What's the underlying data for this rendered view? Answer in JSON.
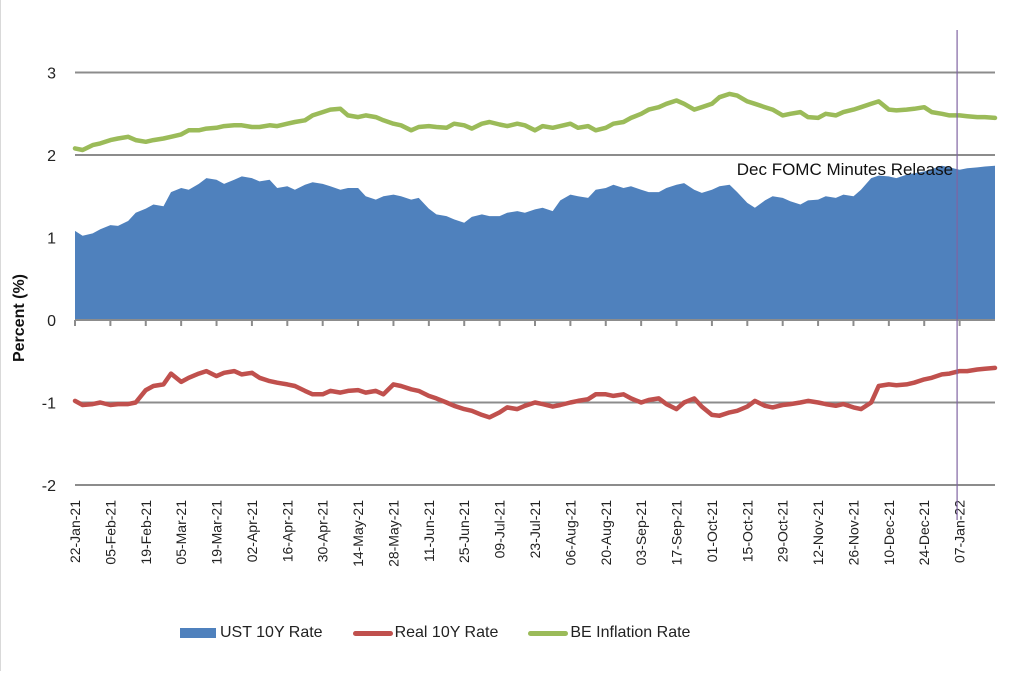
{
  "chart_data": {
    "type": "area+line",
    "title": "",
    "ylabel": "Percent (%)",
    "xlabel": "",
    "ylim": [
      -2,
      3.5
    ],
    "yticks": [
      -2,
      -1,
      0,
      1,
      2,
      3
    ],
    "ytick_labels": [
      "-2",
      "-1",
      "0",
      "1",
      "2",
      "3"
    ],
    "grid": "horizontal",
    "x_start": "22-Jan-21",
    "x_days_span": 364,
    "xtick_interval_days": 14,
    "xtick_labels": [
      "22-Jan-21",
      "05-Feb-21",
      "19-Feb-21",
      "05-Mar-21",
      "19-Mar-21",
      "02-Apr-21",
      "16-Apr-21",
      "30-Apr-21",
      "14-May-21",
      "28-May-21",
      "11-Jun-21",
      "25-Jun-21",
      "09-Jul-21",
      "23-Jul-21",
      "06-Aug-21",
      "20-Aug-21",
      "03-Sep-21",
      "17-Sep-21",
      "01-Oct-21",
      "15-Oct-21",
      "29-Oct-21",
      "12-Nov-21",
      "26-Nov-21",
      "10-Dec-21",
      "24-Dec-21",
      "07-Jan-22"
    ],
    "x_days": [
      0,
      3,
      7,
      10,
      14,
      17,
      21,
      24,
      28,
      31,
      35,
      38,
      42,
      45,
      49,
      52,
      56,
      59,
      63,
      66,
      70,
      73,
      77,
      80,
      84,
      87,
      91,
      94,
      98,
      101,
      105,
      108,
      112,
      115,
      119,
      122,
      126,
      129,
      133,
      136,
      140,
      143,
      147,
      150,
      154,
      157,
      161,
      164,
      168,
      171,
      175,
      178,
      182,
      185,
      189,
      192,
      196,
      199,
      203,
      206,
      210,
      213,
      217,
      220,
      224,
      227,
      231,
      234,
      238,
      241,
      245,
      248,
      252,
      255,
      259,
      262,
      266,
      269,
      273,
      276,
      280,
      283,
      287,
      290,
      294,
      297,
      301,
      304,
      308,
      311,
      315,
      318,
      322,
      325,
      329,
      332,
      336,
      339,
      343,
      346,
      350,
      353,
      357,
      360,
      364
    ],
    "series": [
      {
        "name": "UST 10Y Rate",
        "kind": "area",
        "color": "#4f81bd",
        "values": [
          1.08,
          1.02,
          1.05,
          1.1,
          1.15,
          1.14,
          1.2,
          1.3,
          1.35,
          1.4,
          1.38,
          1.55,
          1.6,
          1.58,
          1.65,
          1.72,
          1.7,
          1.65,
          1.7,
          1.74,
          1.72,
          1.68,
          1.7,
          1.6,
          1.62,
          1.58,
          1.64,
          1.67,
          1.65,
          1.62,
          1.58,
          1.6,
          1.6,
          1.5,
          1.46,
          1.5,
          1.52,
          1.5,
          1.46,
          1.48,
          1.35,
          1.28,
          1.26,
          1.22,
          1.18,
          1.25,
          1.28,
          1.26,
          1.26,
          1.3,
          1.32,
          1.3,
          1.34,
          1.36,
          1.32,
          1.45,
          1.52,
          1.5,
          1.48,
          1.58,
          1.6,
          1.64,
          1.6,
          1.62,
          1.58,
          1.55,
          1.55,
          1.6,
          1.64,
          1.66,
          1.58,
          1.54,
          1.58,
          1.62,
          1.64,
          1.55,
          1.42,
          1.36,
          1.45,
          1.5,
          1.48,
          1.44,
          1.4,
          1.45,
          1.46,
          1.5,
          1.48,
          1.52,
          1.5,
          1.58,
          1.72,
          1.75,
          1.74,
          1.72,
          1.76,
          1.78,
          1.8,
          1.83,
          1.87,
          1.85,
          1.82,
          1.84,
          1.85,
          1.86,
          1.87
        ]
      },
      {
        "name": "Real 10Y Rate",
        "kind": "line",
        "color": "#c0504d",
        "values": [
          -0.98,
          -1.03,
          -1.02,
          -1.0,
          -1.03,
          -1.02,
          -1.02,
          -1.0,
          -0.85,
          -0.8,
          -0.78,
          -0.65,
          -0.75,
          -0.7,
          -0.65,
          -0.62,
          -0.68,
          -0.64,
          -0.62,
          -0.66,
          -0.64,
          -0.7,
          -0.74,
          -0.76,
          -0.78,
          -0.8,
          -0.86,
          -0.9,
          -0.9,
          -0.86,
          -0.88,
          -0.86,
          -0.85,
          -0.88,
          -0.86,
          -0.9,
          -0.78,
          -0.8,
          -0.84,
          -0.86,
          -0.92,
          -0.95,
          -1.0,
          -1.04,
          -1.08,
          -1.1,
          -1.15,
          -1.18,
          -1.12,
          -1.06,
          -1.08,
          -1.04,
          -1.0,
          -1.02,
          -1.05,
          -1.03,
          -1.0,
          -0.98,
          -0.96,
          -0.9,
          -0.9,
          -0.92,
          -0.9,
          -0.95,
          -1.0,
          -0.97,
          -0.95,
          -1.02,
          -1.08,
          -1.0,
          -0.95,
          -1.05,
          -1.15,
          -1.16,
          -1.12,
          -1.1,
          -1.05,
          -0.98,
          -1.04,
          -1.06,
          -1.03,
          -1.02,
          -1.0,
          -0.98,
          -1.0,
          -1.02,
          -1.04,
          -1.02,
          -1.06,
          -1.08,
          -1.0,
          -0.8,
          -0.78,
          -0.79,
          -0.78,
          -0.76,
          -0.72,
          -0.7,
          -0.66,
          -0.65,
          -0.62,
          -0.62,
          -0.6,
          -0.59,
          -0.58
        ]
      },
      {
        "name": "BE Inflation Rate",
        "kind": "line",
        "color": "#9bbb59",
        "values": [
          2.08,
          2.06,
          2.12,
          2.14,
          2.18,
          2.2,
          2.22,
          2.18,
          2.16,
          2.18,
          2.2,
          2.22,
          2.25,
          2.3,
          2.3,
          2.32,
          2.33,
          2.35,
          2.36,
          2.36,
          2.34,
          2.34,
          2.36,
          2.35,
          2.38,
          2.4,
          2.42,
          2.48,
          2.52,
          2.55,
          2.56,
          2.48,
          2.46,
          2.48,
          2.46,
          2.42,
          2.38,
          2.36,
          2.3,
          2.34,
          2.35,
          2.34,
          2.33,
          2.38,
          2.36,
          2.32,
          2.38,
          2.4,
          2.37,
          2.35,
          2.38,
          2.36,
          2.3,
          2.35,
          2.33,
          2.35,
          2.38,
          2.33,
          2.35,
          2.3,
          2.33,
          2.38,
          2.4,
          2.45,
          2.5,
          2.55,
          2.58,
          2.62,
          2.66,
          2.62,
          2.55,
          2.58,
          2.62,
          2.7,
          2.74,
          2.72,
          2.65,
          2.62,
          2.58,
          2.55,
          2.48,
          2.5,
          2.52,
          2.46,
          2.45,
          2.5,
          2.48,
          2.52,
          2.55,
          2.58,
          2.62,
          2.65,
          2.55,
          2.54,
          2.55,
          2.56,
          2.58,
          2.52,
          2.5,
          2.48,
          2.48,
          2.47,
          2.46,
          2.46,
          2.45
        ]
      }
    ],
    "annotations": [
      {
        "text": "Dec FOMC Minutes Release",
        "x_day": 349,
        "color": "#8064a2"
      }
    ],
    "legend": {
      "position": "bottom",
      "entries": [
        "UST 10Y Rate",
        "Real 10Y Rate",
        "BE Inflation Rate"
      ]
    }
  }
}
